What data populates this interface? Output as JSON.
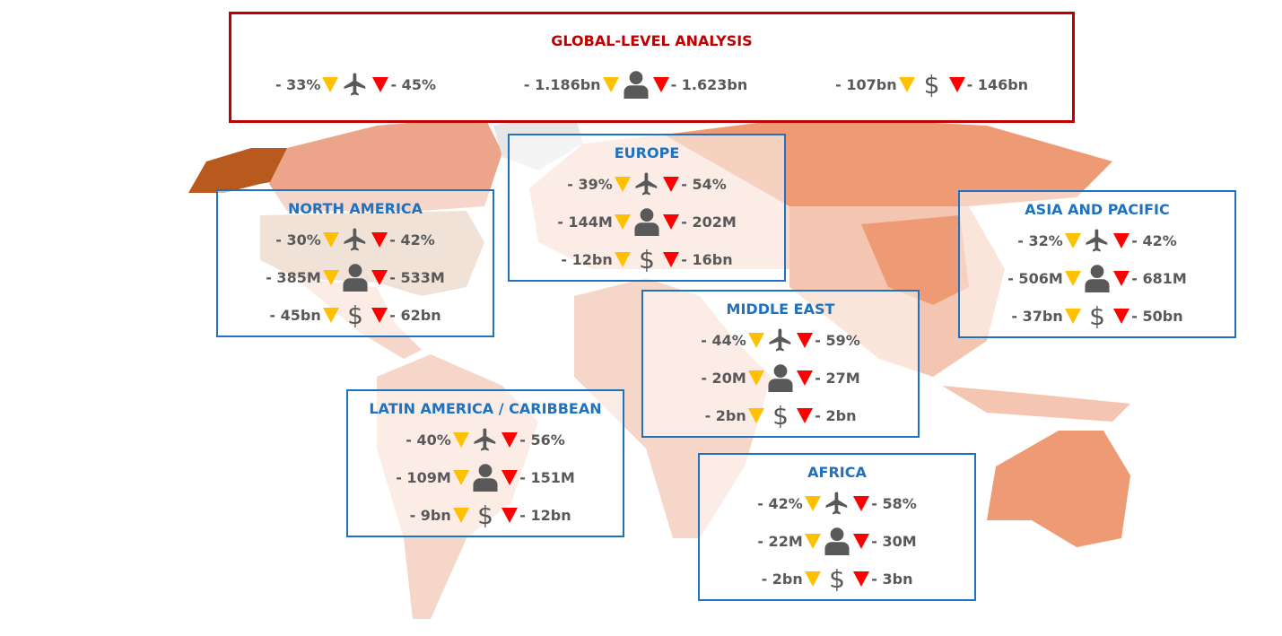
{
  "global": {
    "title": "GLOBAL-LEVEL ANALYSIS",
    "flights": {
      "low": "- 33%",
      "high": "- 45%"
    },
    "passengers": {
      "low": "- 1.186bn",
      "high": "- 1.623bn"
    },
    "revenue": {
      "low": "- 107bn",
      "high": "- 146bn"
    }
  },
  "dollar_symbol": "$",
  "regions": [
    {
      "title": "NORTH AMERICA",
      "flights": {
        "low": "- 30%",
        "high": "- 42%"
      },
      "passengers": {
        "low": "- 385M",
        "high": "- 533M"
      },
      "revenue": {
        "low": "- 45bn",
        "high": "- 62bn"
      }
    },
    {
      "title": "EUROPE",
      "flights": {
        "low": "- 39%",
        "high": "- 54%"
      },
      "passengers": {
        "low": "- 144M",
        "high": "- 202M"
      },
      "revenue": {
        "low": "- 12bn",
        "high": "- 16bn"
      }
    },
    {
      "title": "ASIA AND PACIFIC",
      "flights": {
        "low": "- 32%",
        "high": "- 42%"
      },
      "passengers": {
        "low": "- 506M",
        "high": "- 681M"
      },
      "revenue": {
        "low": "- 37bn",
        "high": "- 50bn"
      }
    },
    {
      "title": "MIDDLE EAST",
      "flights": {
        "low": "- 44%",
        "high": "- 59%"
      },
      "passengers": {
        "low": "- 20M",
        "high": "- 27M"
      },
      "revenue": {
        "low": "- 2bn",
        "high": "- 2bn"
      }
    },
    {
      "title": "LATIN AMERICA / CARIBBEAN",
      "flights": {
        "low": "- 40%",
        "high": "- 56%"
      },
      "passengers": {
        "low": "- 109M",
        "high": "- 151M"
      },
      "revenue": {
        "low": "- 9bn",
        "high": "- 12bn"
      }
    },
    {
      "title": "AFRICA",
      "flights": {
        "low": "- 42%",
        "high": "- 58%"
      },
      "passengers": {
        "low": "- 22M",
        "high": "- 30M"
      },
      "revenue": {
        "low": "- 2bn",
        "high": "- 3bn"
      }
    }
  ],
  "colors": {
    "global_border": "#c00000",
    "region_border": "#1f72c0",
    "low_marker": "#ffc000",
    "high_marker": "#ff0000",
    "text": "#595959"
  }
}
